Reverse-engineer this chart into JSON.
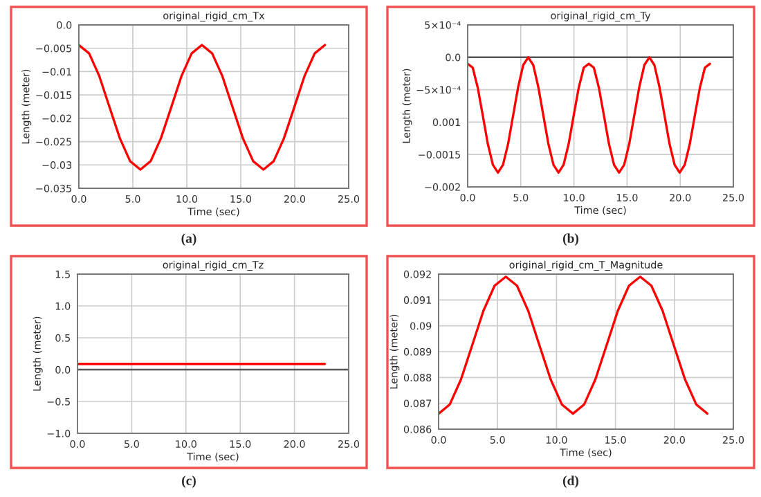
{
  "chart_data": [
    {
      "type": "line",
      "title": "original_rigid_cm_Tx",
      "xlabel": "Time (sec)",
      "ylabel": "Length (meter)",
      "annotations": [
        "(a)"
      ],
      "x": [
        0,
        0.95,
        1.9,
        2.85,
        3.8,
        4.75,
        5.7,
        6.65,
        7.6,
        8.55,
        9.5,
        10.45,
        11.4,
        12.35,
        13.3,
        14.25,
        15.2,
        16.15,
        17.1,
        18.05,
        19.0,
        19.95,
        20.9,
        21.85,
        22.8
      ],
      "series": [
        {
          "color": "#ff0000",
          "values": [
            -0.0043,
            -0.0061,
            -0.011,
            -0.0177,
            -0.0243,
            -0.0292,
            -0.031,
            -0.0292,
            -0.0243,
            -0.0177,
            -0.011,
            -0.0061,
            -0.0043,
            -0.0061,
            -0.011,
            -0.0177,
            -0.0243,
            -0.0292,
            -0.031,
            -0.0292,
            -0.0243,
            -0.0177,
            -0.011,
            -0.0061,
            -0.0043
          ]
        }
      ],
      "xlim": [
        0,
        25
      ],
      "xticks": [
        {
          "value": 0,
          "label": "0.0"
        },
        {
          "value": 5,
          "label": "5.0"
        },
        {
          "value": 10,
          "label": "10.0"
        },
        {
          "value": 15,
          "label": "15.0"
        },
        {
          "value": 20,
          "label": "20.0"
        },
        {
          "value": 25,
          "label": "25.0"
        }
      ],
      "ylim": [
        -0.035,
        0
      ],
      "yticks": [
        {
          "value": -0.035,
          "label": "−0.035"
        },
        {
          "value": -0.03,
          "label": "−0.03"
        },
        {
          "value": -0.025,
          "label": "−0.025"
        },
        {
          "value": -0.02,
          "label": "−0.02"
        },
        {
          "value": -0.015,
          "label": "−0.015"
        },
        {
          "value": -0.01,
          "label": "−0.01"
        },
        {
          "value": -0.005,
          "label": "−0.005"
        },
        {
          "value": 0,
          "label": "0.0"
        }
      ],
      "grid": true,
      "line_style": "solid",
      "marker": "none"
    },
    {
      "type": "line",
      "title": "original_rigid_cm_Ty",
      "xlabel": "Time (sec)",
      "ylabel": "Length (meter)",
      "annotations": [
        "(b)"
      ],
      "x": [
        0,
        0.475,
        0.95,
        1.425,
        1.9,
        2.375,
        2.85,
        3.325,
        3.8,
        4.275,
        4.75,
        5.225,
        5.7,
        6.175,
        6.65,
        7.125,
        7.6,
        8.075,
        8.55,
        9.025,
        9.5,
        9.975,
        10.45,
        10.925,
        11.4,
        11.875,
        12.35,
        12.825,
        13.3,
        13.775,
        14.25,
        14.725,
        15.2,
        15.675,
        16.15,
        16.625,
        17.1,
        17.575,
        18.05,
        18.525,
        19.0,
        19.475,
        19.95,
        20.425,
        20.9,
        21.375,
        21.85,
        22.325,
        22.8
      ],
      "series": [
        {
          "color": "#ff0000",
          "values": [
            -0.0001,
            -0.00016,
            -0.00047,
            -0.0009,
            -0.00134,
            -0.00166,
            -0.00178,
            -0.00166,
            -0.00134,
            -0.0009,
            -0.00046,
            -0.00012,
            0.0,
            -0.00012,
            -0.00046,
            -0.0009,
            -0.00134,
            -0.00166,
            -0.00178,
            -0.00166,
            -0.00134,
            -0.0009,
            -0.00047,
            -0.00016,
            -0.0001,
            -0.00016,
            -0.00047,
            -0.0009,
            -0.00134,
            -0.00166,
            -0.00178,
            -0.00166,
            -0.00134,
            -0.0009,
            -0.00046,
            -0.00012,
            0.0,
            -0.00012,
            -0.00046,
            -0.0009,
            -0.00134,
            -0.00166,
            -0.00178,
            -0.00166,
            -0.00134,
            -0.0009,
            -0.00047,
            -0.00016,
            -0.0001
          ]
        }
      ],
      "xlim": [
        0,
        25
      ],
      "xticks": [
        {
          "value": 0,
          "label": "0.0"
        },
        {
          "value": 5,
          "label": "5.0"
        },
        {
          "value": 10,
          "label": "10.0"
        },
        {
          "value": 15,
          "label": "15.0"
        },
        {
          "value": 20,
          "label": "20.0"
        },
        {
          "value": 25,
          "label": "25.0"
        }
      ],
      "ylim": [
        -0.002,
        0.0005
      ],
      "yticks": [
        {
          "value": -0.002,
          "label": "−0.002"
        },
        {
          "value": -0.0015,
          "label": "−0.0015"
        },
        {
          "value": -0.001,
          "label": "0.001"
        },
        {
          "value": -0.0005,
          "label": "−5×10⁻⁴"
        },
        {
          "value": 0,
          "label": "0.0"
        },
        {
          "value": 0.0005,
          "label": "5×10⁻⁴"
        }
      ],
      "ref_lines": [
        {
          "axis": "y",
          "value": 0,
          "color": "#555555"
        }
      ],
      "grid": true,
      "line_style": "solid",
      "marker": "none"
    },
    {
      "type": "line",
      "title": "original_rigid_cm_Tz",
      "xlabel": "Time (sec)",
      "ylabel": "Length (meter)",
      "annotations": [
        "(c)"
      ],
      "x": [
        0,
        22.8
      ],
      "series": [
        {
          "color": "#ff0000",
          "values": [
            0.09,
            0.09
          ]
        }
      ],
      "xlim": [
        0,
        25
      ],
      "xticks": [
        {
          "value": 0,
          "label": "0.0"
        },
        {
          "value": 5,
          "label": "5.0"
        },
        {
          "value": 10,
          "label": "10.0"
        },
        {
          "value": 15,
          "label": "15.0"
        },
        {
          "value": 20,
          "label": "20.0"
        },
        {
          "value": 25,
          "label": "25.0"
        }
      ],
      "ylim": [
        -1,
        1.5
      ],
      "yticks": [
        {
          "value": -1,
          "label": "−1.0"
        },
        {
          "value": -0.5,
          "label": "−0.5"
        },
        {
          "value": 0,
          "label": "0.0"
        },
        {
          "value": 0.5,
          "label": "0.5"
        },
        {
          "value": 1,
          "label": "1.0"
        },
        {
          "value": 1.5,
          "label": "1.5"
        }
      ],
      "ref_lines": [
        {
          "axis": "y",
          "value": 0,
          "color": "#555555"
        }
      ],
      "grid": true,
      "line_style": "solid",
      "marker": "none"
    },
    {
      "type": "line",
      "title": "original_rigid_cm_T_Magnitude",
      "xlabel": "Time (sec)",
      "ylabel": "Length (meter)",
      "annotations": [
        "(d)"
      ],
      "x": [
        0,
        0.95,
        1.9,
        2.85,
        3.8,
        4.75,
        5.7,
        6.65,
        7.6,
        8.55,
        9.5,
        10.45,
        11.4,
        12.35,
        13.3,
        14.25,
        15.2,
        16.15,
        17.1,
        18.05,
        19.0,
        19.95,
        20.9,
        21.85,
        22.8
      ],
      "series": [
        {
          "color": "#ff0000",
          "values": [
            0.0866,
            0.08696,
            0.08793,
            0.08925,
            0.09058,
            0.09155,
            0.0919,
            0.09155,
            0.09058,
            0.08925,
            0.08793,
            0.08696,
            0.0866,
            0.08696,
            0.08793,
            0.08925,
            0.09058,
            0.09155,
            0.0919,
            0.09155,
            0.09058,
            0.08925,
            0.08793,
            0.08696,
            0.0866
          ]
        }
      ],
      "xlim": [
        0,
        25
      ],
      "xticks": [
        {
          "value": 0,
          "label": "0.0"
        },
        {
          "value": 5,
          "label": "5.0"
        },
        {
          "value": 10,
          "label": "10.0"
        },
        {
          "value": 15,
          "label": "15.0"
        },
        {
          "value": 20,
          "label": "20.0"
        },
        {
          "value": 25,
          "label": "25.0"
        }
      ],
      "ylim": [
        0.086,
        0.092
      ],
      "yticks": [
        {
          "value": 0.086,
          "label": "0.086"
        },
        {
          "value": 0.087,
          "label": "0.087"
        },
        {
          "value": 0.088,
          "label": "0.088"
        },
        {
          "value": 0.089,
          "label": "0.089"
        },
        {
          "value": 0.09,
          "label": "0.09"
        },
        {
          "value": 0.091,
          "label": "0.091"
        },
        {
          "value": 0.092,
          "label": "0.092"
        }
      ],
      "grid": true,
      "line_style": "solid",
      "marker": "none"
    }
  ]
}
